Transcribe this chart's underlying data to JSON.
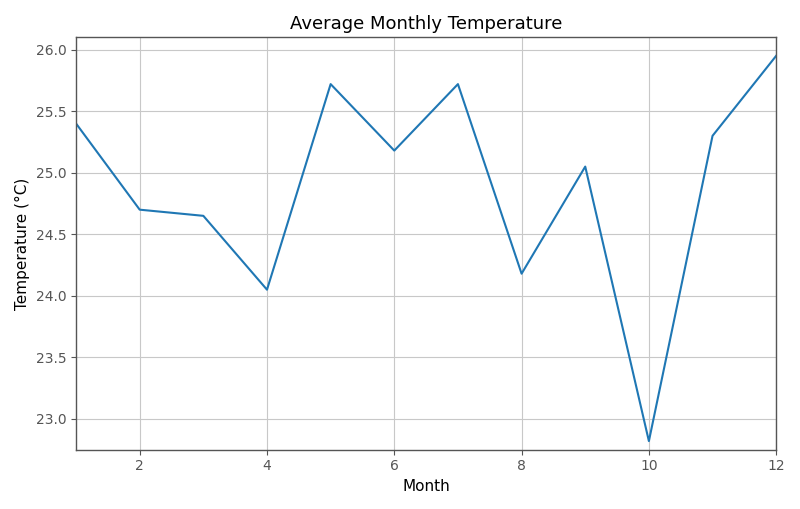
{
  "months": [
    1,
    2,
    3,
    4,
    5,
    6,
    7,
    8,
    9,
    10,
    11,
    12
  ],
  "temperatures": [
    25.4,
    24.7,
    24.65,
    24.05,
    25.72,
    25.18,
    25.72,
    24.18,
    25.05,
    22.82,
    25.3,
    25.95
  ],
  "title": "Average Monthly Temperature",
  "xlabel": "Month",
  "ylabel": "Temperature (°C)",
  "line_color": "#1f77b4",
  "line_width": 1.5,
  "xlim": [
    1,
    12
  ],
  "ylim": [
    22.75,
    26.1
  ],
  "xticks": [
    2,
    4,
    6,
    8,
    10,
    12
  ],
  "yticks": [
    23.0,
    23.5,
    24.0,
    24.5,
    25.0,
    25.5,
    26.0
  ],
  "grid": true,
  "background_color": "#ffffff",
  "grid_color": "#c8c8c8",
  "spine_color": "#555555",
  "tick_color": "#555555",
  "title_fontsize": 13,
  "label_fontsize": 11,
  "tick_fontsize": 10
}
